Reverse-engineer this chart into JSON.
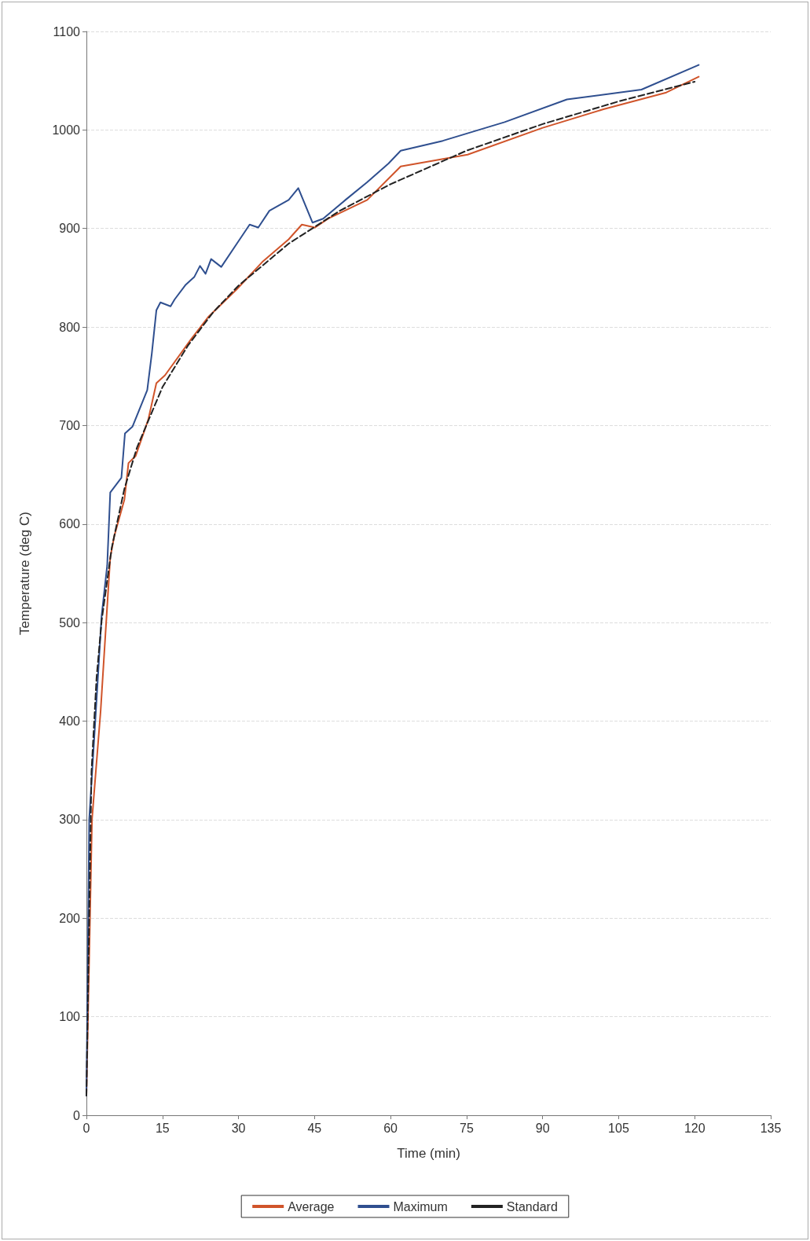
{
  "chart_data": {
    "type": "line",
    "xlabel": "Time (min)",
    "ylabel": "Temperature (deg C)",
    "xlim": [
      0,
      135
    ],
    "xticks": [
      0,
      15,
      30,
      45,
      60,
      75,
      90,
      105,
      120,
      135
    ],
    "ylim": [
      0,
      1100
    ],
    "yticks": [
      0,
      100,
      200,
      300,
      400,
      500,
      600,
      700,
      800,
      900,
      1000,
      1100
    ],
    "grid": "y",
    "legend": "bottom",
    "marker": "none",
    "series": [
      {
        "name": "Average",
        "color": "#d0542a",
        "line_style": "solid",
        "x": [
          0,
          1.1,
          2.8,
          4.7,
          5.5,
          7.5,
          8.3,
          9.7,
          12.2,
          13.8,
          15.5,
          20.7,
          24,
          29.6,
          34.7,
          39.9,
          42.5,
          45.1,
          47.7,
          55.4,
          62,
          75.2,
          89.9,
          102,
          114.4,
          120.8
        ],
        "values": [
          20,
          300,
          410,
          566,
          588,
          625,
          662,
          669,
          706,
          743,
          751,
          788,
          810,
          838,
          866,
          889,
          904,
          901,
          910,
          929,
          963,
          975,
          1002,
          1021,
          1038,
          1054
        ]
      },
      {
        "name": "Maximum",
        "color": "#2f4f8f",
        "line_style": "solid",
        "x": [
          0,
          0.55,
          1.7,
          3,
          4.1,
          4.7,
          6.9,
          7.6,
          9.1,
          12,
          12.9,
          13.8,
          14.6,
          16.6,
          17.4,
          19.6,
          21.3,
          22.4,
          23.5,
          24.6,
          26.6,
          29.6,
          32.2,
          33.9,
          36.1,
          39.9,
          41.8,
          44.6,
          46.7,
          51.1,
          55.4,
          59.6,
          62,
          70.3,
          82.5,
          94.8,
          109.5,
          120.8
        ],
        "values": [
          20,
          300,
          396,
          507,
          558,
          632,
          647,
          692,
          699,
          736,
          773,
          817,
          825,
          821,
          828,
          843,
          851,
          862,
          854,
          869,
          861,
          884,
          904,
          901,
          918,
          929,
          941,
          906,
          910,
          929,
          947,
          966,
          979,
          989,
          1008,
          1031,
          1041,
          1066
        ]
      },
      {
        "name": "Standard",
        "color": "#222222",
        "line_style": "dashed",
        "x": [
          0,
          1,
          2,
          3,
          5,
          7.5,
          10,
          15,
          20,
          25,
          30,
          40,
          50,
          60,
          75,
          90,
          105,
          120
        ],
        "values": [
          20,
          349,
          444,
          502,
          576,
          636,
          678,
          739,
          781,
          815,
          842,
          885,
          918,
          945,
          979,
          1006,
          1029,
          1049
        ]
      }
    ]
  }
}
